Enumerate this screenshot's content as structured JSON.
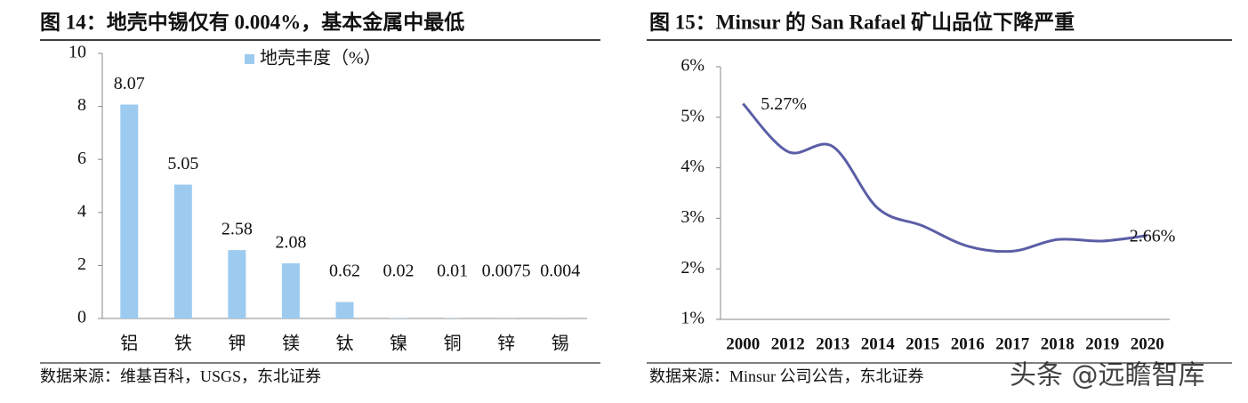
{
  "chart_data": [
    {
      "type": "bar",
      "title": "图 14：地壳中锡仅有 0.004%，基本金属中最低",
      "categories": [
        "铝",
        "铁",
        "钾",
        "镁",
        "钛",
        "镍",
        "铜",
        "锌",
        "锡"
      ],
      "series": [
        {
          "name": "地壳丰度（%）",
          "color": "#9dcbf0",
          "values": [
            8.07,
            5.05,
            2.58,
            2.08,
            0.62,
            0.02,
            0.01,
            0.0075,
            0.004
          ]
        }
      ],
      "ylim": [
        0,
        10
      ],
      "yticks": [
        0,
        2,
        4,
        6,
        8,
        10
      ],
      "source": "数据来源：维基百科，USGS，东北证券"
    },
    {
      "type": "line",
      "title": "图 15：Minsur 的 San Rafael 矿山品位下降严重",
      "categories": [
        "2000",
        "2012",
        "2013",
        "2014",
        "2015",
        "2016",
        "2017",
        "2018",
        "2019",
        "2020"
      ],
      "values": [
        5.27,
        4.32,
        4.42,
        3.2,
        2.85,
        2.45,
        2.35,
        2.58,
        2.55,
        2.66
      ],
      "value_labels": [
        "5.27%",
        null,
        null,
        null,
        null,
        null,
        null,
        null,
        null,
        "2.66%"
      ],
      "color": "#5b5ea6",
      "ylim": [
        1,
        6
      ],
      "yticks": [
        {
          "value": 1,
          "label": "1%"
        },
        {
          "value": 2,
          "label": "2%"
        },
        {
          "value": 3,
          "label": "3%"
        },
        {
          "value": 4,
          "label": "4%"
        },
        {
          "value": 5,
          "label": "5%"
        },
        {
          "value": 6,
          "label": "6%"
        }
      ],
      "source": "数据来源：Minsur 公司公告，东北证券",
      "watermark": "头条 @远瞻智库"
    }
  ]
}
